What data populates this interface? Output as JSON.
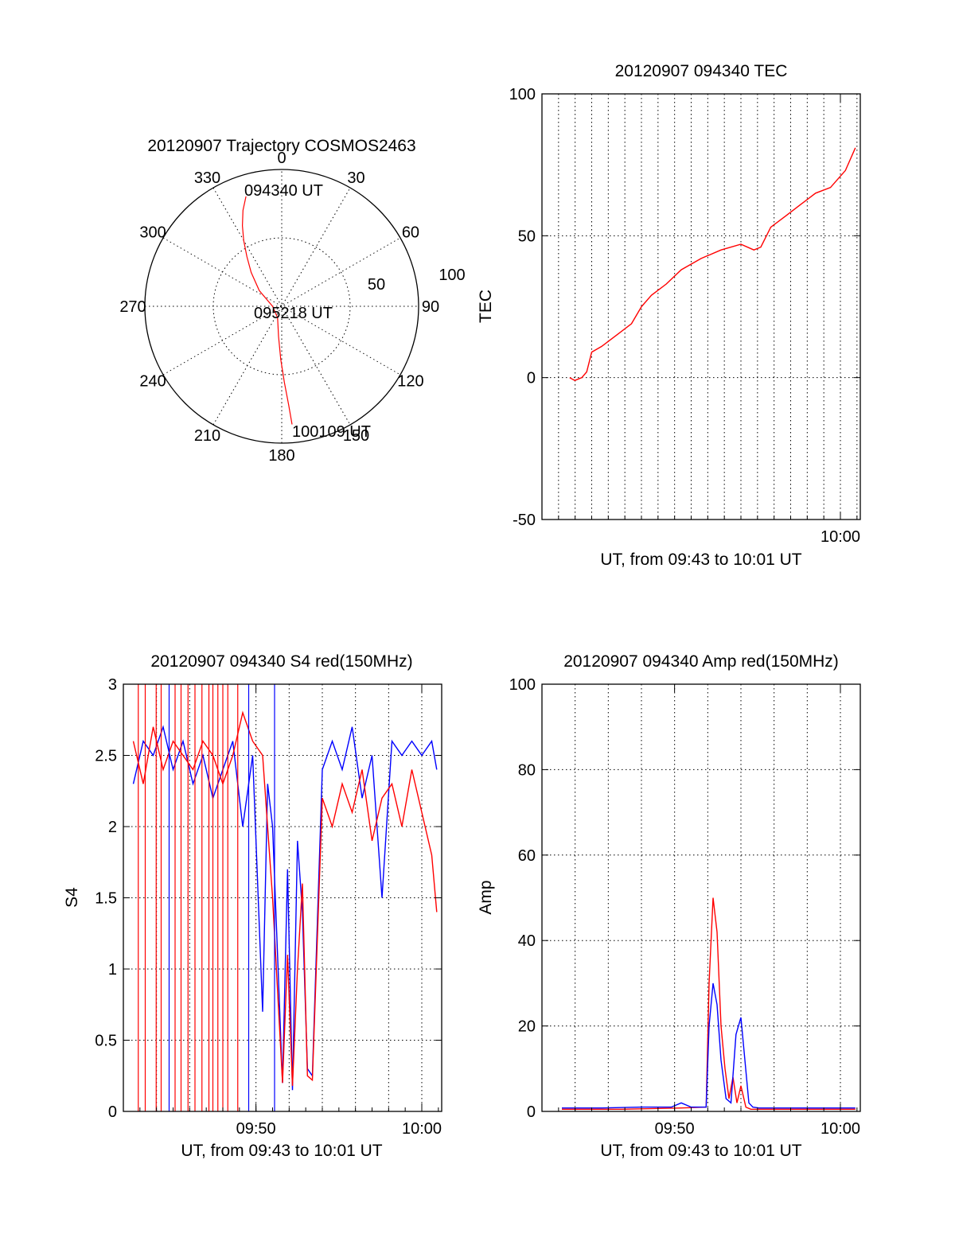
{
  "colors": {
    "red": "#ff0000",
    "blue": "#0000ff",
    "axis": "#000000",
    "background": "#ffffff"
  },
  "chart_data": [
    {
      "id": "polar",
      "type": "scatter",
      "title": "20120907 Trajectory COSMOS2463",
      "coordinate_system": "polar (azimuth deg, elevation deg)",
      "azimuth_labels": [
        "0",
        "30",
        "60",
        "90",
        "120",
        "150",
        "180",
        "210",
        "240",
        "270",
        "300",
        "330"
      ],
      "ring_labels": [
        "50",
        "100"
      ],
      "grid": true,
      "annotations": [
        "094340 UT",
        "095218 UT",
        "100109 UT"
      ],
      "series": [
        {
          "color": "red",
          "points": [
            {
              "az": 342,
              "el": 14
            },
            {
              "az": 338,
              "el": 22
            },
            {
              "az": 334,
              "el": 31
            },
            {
              "az": 330,
              "el": 40
            },
            {
              "az": 325,
              "el": 50
            },
            {
              "az": 318,
              "el": 60
            },
            {
              "az": 305,
              "el": 72
            },
            {
              "az": 270,
              "el": 84
            },
            {
              "az": 200,
              "el": 82
            },
            {
              "az": 186,
              "el": 70
            },
            {
              "az": 181,
              "el": 55
            },
            {
              "az": 178,
              "el": 40
            },
            {
              "az": 176,
              "el": 25
            },
            {
              "az": 175,
              "el": 12
            }
          ]
        }
      ]
    },
    {
      "id": "tec",
      "type": "line",
      "title": "20120907 094340 TEC",
      "xlabel": "UT, from 09:43 to 10:01 UT",
      "ylabel": "TEC",
      "xlim": [
        9.7,
        10.02
      ],
      "ylim": [
        -50,
        100
      ],
      "xticks": [
        {
          "v": 10.0,
          "label": "10:00"
        }
      ],
      "yticks": [
        -50,
        0,
        50,
        100
      ],
      "minor_xgrid_step_min": 1,
      "grid": true,
      "series": [
        {
          "color": "red",
          "x": [
            9.7278,
            9.733,
            9.74,
            9.745,
            9.75,
            9.76,
            9.775,
            9.79,
            9.8,
            9.81,
            9.825,
            9.84,
            9.86,
            9.88,
            9.9,
            9.913,
            9.92,
            9.93,
            9.945,
            9.96,
            9.975,
            9.99,
            10.0,
            10.005,
            10.015
          ],
          "y": [
            0,
            -1,
            0,
            2,
            9,
            11,
            15,
            19,
            25,
            29,
            33,
            38,
            42,
            45,
            47,
            45,
            46,
            53,
            57,
            61,
            65,
            67,
            71,
            73,
            81
          ]
        }
      ]
    },
    {
      "id": "s4",
      "type": "line",
      "title": "20120907 094340 S4 red(150MHz)",
      "xlabel": "UT, from 09:43 to 10:01 UT",
      "ylabel": "S4",
      "xlim": [
        9.7,
        10.02
      ],
      "ylim": [
        0,
        3
      ],
      "xticks": [
        {
          "v": 9.8333,
          "label": "09:50"
        },
        {
          "v": 10.0,
          "label": "10:00"
        }
      ],
      "yticks": [
        {
          "v": 0,
          "label": "0"
        },
        {
          "v": 0.5,
          "label": "0.5"
        },
        {
          "v": 1,
          "label": "1"
        },
        {
          "v": 1.5,
          "label": "1.5"
        },
        {
          "v": 2,
          "label": "2"
        },
        {
          "v": 2.5,
          "label": "2.5"
        },
        {
          "v": 3,
          "label": "3"
        }
      ],
      "grid": true,
      "series": [
        {
          "color": "blue",
          "x": [
            9.71,
            9.72,
            9.73,
            9.74,
            9.75,
            9.76,
            9.77,
            9.78,
            9.79,
            9.8,
            9.81,
            9.82,
            9.83,
            9.84,
            9.845,
            9.85,
            9.86,
            9.865,
            9.87,
            9.875,
            9.88,
            9.885,
            9.89,
            9.9,
            9.91,
            9.92,
            9.93,
            9.94,
            9.95,
            9.96,
            9.97,
            9.98,
            9.99,
            10.0,
            10.01,
            10.015
          ],
          "y": [
            2.3,
            2.6,
            2.5,
            2.7,
            2.4,
            2.6,
            2.3,
            2.5,
            2.2,
            2.4,
            2.6,
            2.0,
            2.5,
            0.7,
            2.3,
            2.0,
            0.2,
            1.7,
            0.15,
            1.9,
            1.4,
            0.3,
            0.25,
            2.4,
            2.6,
            2.4,
            2.7,
            2.2,
            2.5,
            1.5,
            2.6,
            2.5,
            2.6,
            2.5,
            2.6,
            2.4
          ]
        },
        {
          "color": "red",
          "x": [
            9.71,
            9.72,
            9.73,
            9.74,
            9.75,
            9.76,
            9.77,
            9.78,
            9.79,
            9.8,
            9.81,
            9.82,
            9.83,
            9.84,
            9.85,
            9.86,
            9.865,
            9.87,
            9.875,
            9.88,
            9.885,
            9.89,
            9.9,
            9.91,
            9.92,
            9.93,
            9.94,
            9.95,
            9.96,
            9.97,
            9.98,
            9.99,
            10.0,
            10.01,
            10.015
          ],
          "y": [
            2.6,
            2.3,
            2.7,
            2.4,
            2.6,
            2.5,
            2.4,
            2.6,
            2.5,
            2.3,
            2.5,
            2.8,
            2.6,
            2.5,
            1.5,
            0.2,
            1.1,
            0.18,
            1.0,
            1.6,
            0.25,
            0.22,
            2.2,
            2.0,
            2.3,
            2.1,
            2.4,
            1.9,
            2.2,
            2.3,
            2.0,
            2.4,
            2.1,
            1.8,
            1.4
          ]
        }
      ],
      "red_spikes_to_zero_x": [
        9.715,
        9.722,
        9.733,
        9.738,
        9.752,
        9.758,
        9.765,
        9.772,
        9.779,
        9.786,
        9.79,
        9.795,
        9.8,
        9.805,
        9.815
      ],
      "blue_spikes_to_zero_x": [
        9.746,
        9.826,
        9.852
      ]
    },
    {
      "id": "amp",
      "type": "line",
      "title": "20120907 094340 Amp red(150MHz)",
      "xlabel": "UT, from 09:43 to 10:01 UT",
      "ylabel": "Amp",
      "xlim": [
        9.7,
        10.02
      ],
      "ylim": [
        0,
        100
      ],
      "xticks": [
        {
          "v": 9.8333,
          "label": "09:50"
        },
        {
          "v": 10.0,
          "label": "10:00"
        }
      ],
      "yticks": [
        0,
        20,
        40,
        60,
        80,
        100
      ],
      "grid": true,
      "series": [
        {
          "color": "red",
          "x": [
            9.72,
            9.78,
            9.84,
            9.865,
            9.868,
            9.872,
            9.876,
            9.88,
            9.884,
            9.888,
            9.892,
            9.896,
            9.9,
            9.905,
            9.91,
            10.015
          ],
          "y": [
            0.5,
            0.5,
            0.8,
            1,
            30,
            50,
            42,
            20,
            10,
            3,
            8,
            2,
            6,
            1,
            0.5,
            0.5
          ]
        },
        {
          "color": "blue",
          "x": [
            9.72,
            9.76,
            9.8,
            9.83,
            9.84,
            9.85,
            9.865,
            9.868,
            9.872,
            9.876,
            9.88,
            9.885,
            9.89,
            9.895,
            9.9,
            9.904,
            9.908,
            9.912,
            9.918,
            9.93,
            9.97,
            10.015
          ],
          "y": [
            0.8,
            0.8,
            1,
            1,
            2,
            1,
            1,
            20,
            30,
            25,
            12,
            3,
            2,
            18,
            22,
            12,
            2,
            1,
            0.8,
            0.8,
            0.8,
            0.8
          ]
        }
      ]
    }
  ]
}
